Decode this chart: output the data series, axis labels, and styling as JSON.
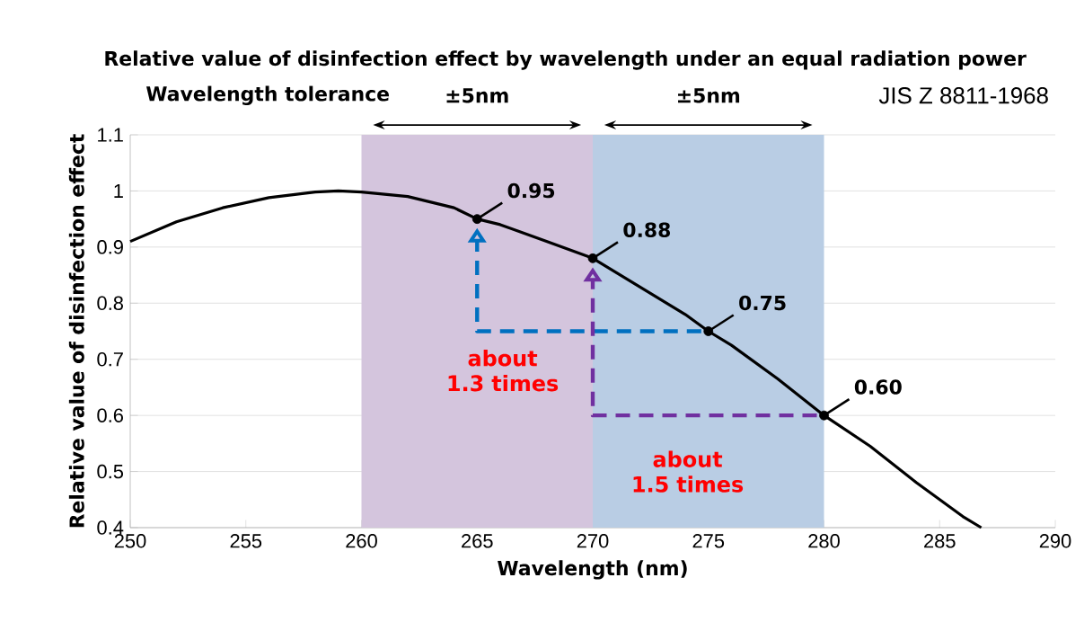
{
  "chart_data": {
    "type": "line",
    "title": "Relative value of disinfection effect by wavelength under an equal radiation power",
    "xlabel": "Wavelength (nm)",
    "ylabel": "Relative value of disinfection effect",
    "xlim": [
      250,
      290
    ],
    "ylim": [
      0.4,
      1.1
    ],
    "xticks": [
      250,
      255,
      260,
      265,
      270,
      275,
      280,
      285,
      290
    ],
    "yticks": [
      0.4,
      0.5,
      0.6,
      0.7,
      0.8,
      0.9,
      1,
      1.1
    ],
    "grid": "y",
    "series": [
      {
        "color": "#000000",
        "x": [
          250,
          252,
          254,
          256,
          258,
          259,
          260,
          262,
          264,
          265,
          266,
          268,
          270,
          272,
          274,
          275,
          276,
          278,
          280,
          282,
          284,
          286,
          286.8
        ],
        "values": [
          0.91,
          0.945,
          0.97,
          0.988,
          0.998,
          1.0,
          0.998,
          0.99,
          0.97,
          0.95,
          0.94,
          0.91,
          0.88,
          0.83,
          0.78,
          0.75,
          0.725,
          0.665,
          0.6,
          0.545,
          0.48,
          0.42,
          0.4
        ]
      },
      {
        "type": "scatter",
        "color": "#000000",
        "marker": "circle",
        "x": [
          265,
          270,
          275,
          280
        ],
        "values": [
          0.95,
          0.88,
          0.75,
          0.6
        ],
        "value_labels": [
          "0.95",
          "0.88",
          "0.75",
          "0.60"
        ]
      }
    ],
    "bands": [
      {
        "axis": "x",
        "from": 260,
        "to": 270,
        "label": "±5nm",
        "color": "#d4c5dd"
      },
      {
        "axis": "x",
        "from": 270,
        "to": 280,
        "label": "±5nm",
        "color": "#b9cde4"
      }
    ],
    "annotations": [
      "Wavelength tolerance",
      "JIS Z 8811-1968",
      "about 1.3 times",
      "about 1.5 times"
    ]
  }
}
